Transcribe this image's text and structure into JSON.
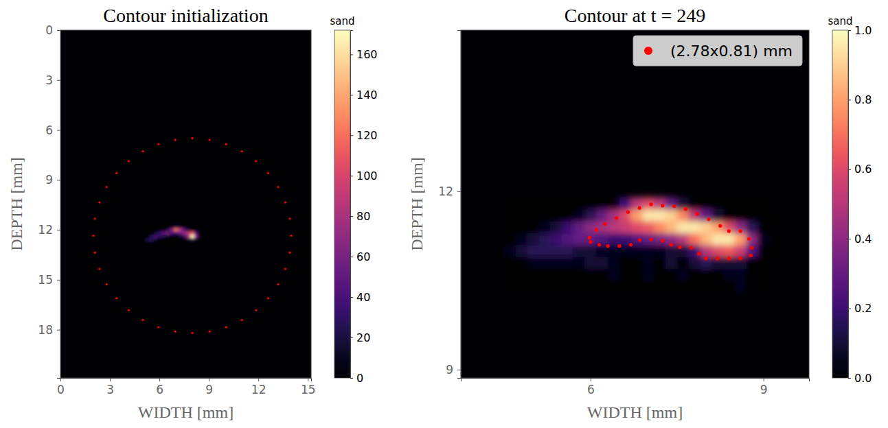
{
  "chart_data": [
    {
      "type": "heatmap",
      "title": "Contour initialization",
      "x_label": "WIDTH [mm]",
      "y_label": "DEPTH [mm]",
      "xlim": [
        0,
        15.2
      ],
      "ylim": [
        20.9,
        0
      ],
      "xticks": [
        0,
        3,
        6,
        9,
        12,
        15
      ],
      "yticks": [
        0,
        3,
        6,
        9,
        12,
        15,
        18
      ],
      "cells": {
        "x": [
          5.25,
          5.5,
          5.75,
          6.0,
          6.25,
          6.5,
          6.75,
          7.0,
          7.25,
          7.5,
          7.75,
          8.0,
          8.25
        ],
        "y": [
          11.8,
          12.0,
          12.2,
          12.4,
          12.6
        ],
        "z": [
          [
            0,
            0,
            0,
            0,
            0,
            0,
            0,
            20,
            10,
            0,
            0,
            0,
            0
          ],
          [
            0,
            0,
            0,
            0,
            0,
            20,
            60,
            120,
            90,
            50,
            20,
            0,
            0
          ],
          [
            0,
            0,
            10,
            30,
            50,
            60,
            40,
            30,
            50,
            70,
            90,
            110,
            40
          ],
          [
            0,
            20,
            40,
            30,
            20,
            10,
            0,
            0,
            10,
            30,
            80,
            170,
            60
          ],
          [
            20,
            30,
            10,
            0,
            0,
            0,
            0,
            0,
            0,
            0,
            10,
            20,
            0
          ]
        ]
      },
      "colorbar": {
        "title": "sand",
        "range": [
          0,
          172
        ],
        "ticks": [
          0,
          20,
          40,
          60,
          80,
          100,
          120,
          140,
          160
        ]
      },
      "series": [
        {
          "color": "#ff0000",
          "marker": "o",
          "x": [
            14.0,
            13.91,
            13.64,
            13.2,
            12.6,
            11.86,
            11.0,
            10.05,
            9.04,
            8.0,
            6.96,
            5.95,
            5.0,
            4.14,
            3.4,
            2.8,
            2.36,
            2.09,
            2.0,
            2.09,
            2.36,
            2.8,
            3.4,
            4.14,
            5.0,
            5.95,
            6.96,
            8.0,
            9.04,
            10.05,
            11.0,
            11.86,
            12.6,
            13.2,
            13.64,
            13.91
          ],
          "y": [
            12.35,
            13.37,
            14.35,
            15.28,
            16.11,
            16.83,
            17.42,
            17.85,
            18.11,
            18.2,
            18.11,
            17.85,
            17.42,
            16.83,
            16.11,
            15.28,
            14.35,
            13.37,
            12.35,
            11.33,
            10.35,
            9.43,
            8.59,
            7.87,
            7.28,
            6.85,
            6.59,
            6.5,
            6.59,
            6.85,
            7.28,
            7.87,
            8.59,
            9.43,
            10.35,
            11.33
          ]
        }
      ]
    },
    {
      "type": "heatmap",
      "title": "Contour at t = 249",
      "x_label": "WIDTH [mm]",
      "y_label": "DEPTH [mm]",
      "xlim": [
        3.75,
        9.79
      ],
      "ylim": [
        8.86,
        14.71
      ],
      "xticks": [
        6,
        9
      ],
      "yticks": [
        9,
        12
      ],
      "cells": {
        "x": [
          4.6,
          4.8,
          5.0,
          5.2,
          5.4,
          5.6,
          5.8,
          6.0,
          6.2,
          6.4,
          6.6,
          6.8,
          7.0,
          7.2,
          7.4,
          7.6,
          7.8,
          8.0,
          8.2,
          8.4,
          8.6,
          8.8,
          9.0
        ],
        "y": [
          10.4,
          10.6,
          10.8,
          11.0,
          11.2,
          11.4,
          11.6,
          11.8
        ],
        "z": [
          [
            0,
            0,
            0,
            0,
            0,
            0,
            0,
            0,
            0,
            0,
            0,
            0,
            0,
            0,
            0,
            0,
            0,
            0,
            0,
            0,
            0.05,
            0,
            0
          ],
          [
            0,
            0,
            0,
            0,
            0,
            0,
            0,
            0,
            0,
            0.05,
            0,
            0,
            0.05,
            0,
            0,
            0.05,
            0,
            0,
            0,
            0.05,
            0.05,
            0,
            0
          ],
          [
            0,
            0,
            0.05,
            0.05,
            0.05,
            0.05,
            0.05,
            0.1,
            0.1,
            0.05,
            0,
            0,
            0.05,
            0,
            0.1,
            0,
            0.1,
            0.15,
            0.1,
            0.1,
            0.1,
            0,
            0
          ],
          [
            0.05,
            0.1,
            0.15,
            0.15,
            0.15,
            0.15,
            0.1,
            0.1,
            0.05,
            0.05,
            0.05,
            0.05,
            0.05,
            0.05,
            0.1,
            0.1,
            0.2,
            0.5,
            0.6,
            0.65,
            0.55,
            0.25,
            0
          ],
          [
            0,
            0.05,
            0.1,
            0.15,
            0.2,
            0.25,
            0.3,
            0.3,
            0.25,
            0.2,
            0.2,
            0.25,
            0.3,
            0.35,
            0.4,
            0.5,
            0.7,
            0.85,
            0.95,
            0.95,
            0.8,
            0.4,
            0.05
          ],
          [
            0,
            0,
            0,
            0.05,
            0.1,
            0.2,
            0.3,
            0.4,
            0.45,
            0.5,
            0.55,
            0.6,
            0.65,
            0.75,
            0.85,
            0.95,
            0.95,
            0.9,
            0.8,
            0.6,
            0.4,
            0.15,
            0
          ],
          [
            0,
            0,
            0,
            0,
            0,
            0,
            0.05,
            0.15,
            0.3,
            0.45,
            0.6,
            0.8,
            0.95,
            0.95,
            0.9,
            0.75,
            0.5,
            0.3,
            0.1,
            0,
            0,
            0,
            0
          ],
          [
            0,
            0,
            0,
            0,
            0,
            0,
            0,
            0,
            0,
            0,
            0.2,
            0.5,
            0.6,
            0.5,
            0.3,
            0.1,
            0,
            0,
            0,
            0,
            0,
            0,
            0
          ]
        ]
      },
      "colorbar": {
        "title": "sand",
        "range": [
          0,
          1
        ],
        "ticks": [
          {
            "value": 0,
            "label": "0.0"
          },
          {
            "value": 0.2,
            "label": "0.2"
          },
          {
            "value": 0.4,
            "label": "0.4"
          },
          {
            "value": 0.6,
            "label": "0.6"
          },
          {
            "value": 0.8,
            "label": "0.8"
          },
          {
            "value": 1,
            "label": "1.0"
          }
        ]
      },
      "legend": "upper right",
      "series": [
        {
          "name": "(2.78x0.81) mm",
          "color": "#ff0000",
          "marker": "o",
          "x": [
            5.98,
            6.1,
            6.25,
            6.45,
            6.65,
            6.85,
            7.05,
            7.25,
            7.45,
            7.65,
            7.85,
            8.05,
            8.25,
            8.4,
            8.6,
            8.75,
            8.8,
            8.78,
            8.6,
            8.4,
            8.2,
            8.0,
            7.88,
            7.75,
            7.55,
            7.4,
            7.25,
            7.05,
            6.85,
            6.7,
            6.5,
            6.3,
            6.15,
            6.0
          ],
          "y": [
            11.22,
            11.35,
            11.45,
            11.55,
            11.65,
            11.72,
            11.78,
            11.76,
            11.75,
            11.7,
            11.62,
            11.53,
            11.42,
            11.33,
            11.33,
            11.2,
            11.05,
            10.92,
            10.87,
            10.87,
            10.87,
            10.87,
            10.95,
            11.05,
            11.06,
            11.1,
            11.17,
            11.19,
            11.18,
            11.1,
            11.08,
            11.08,
            11.1,
            11.15
          ]
        }
      ]
    }
  ]
}
